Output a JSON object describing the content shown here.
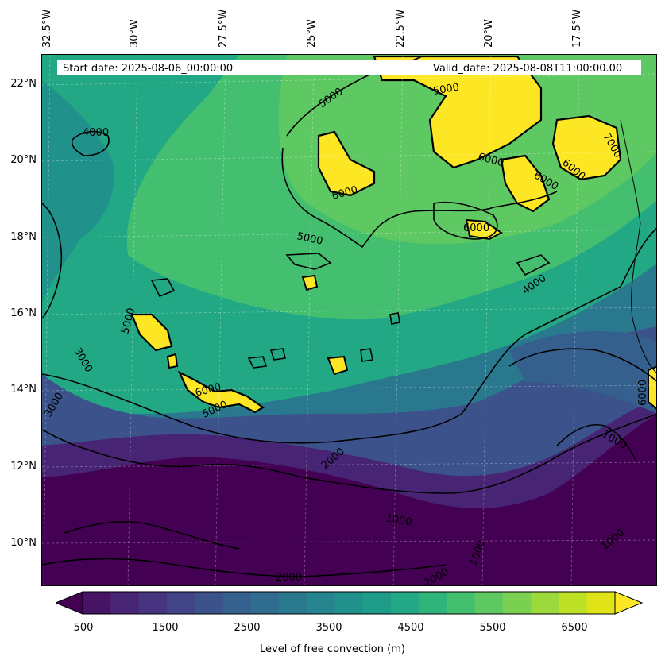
{
  "header": {
    "start_date": "Start date: 2025-08-06_00:00:00",
    "valid_date": "Valid_date: 2025-08-08T11:00:00.00"
  },
  "longitude_labels": [
    "32.5°W",
    "30°W",
    "27.5°W",
    "25°W",
    "22.5°W",
    "20°W",
    "17.5°W"
  ],
  "latitude_labels": [
    "22°N",
    "20°N",
    "18°N",
    "16°N",
    "14°N",
    "12°N",
    "10°N"
  ],
  "contour_labels": [
    "4000",
    "5000",
    "5000",
    "6000",
    "6000",
    "6000",
    "6000",
    "7000",
    "6000",
    "4000",
    "3000",
    "3000",
    "5000",
    "5000",
    "6000",
    "5000",
    "2000",
    "1000",
    "1000",
    "1000",
    "2000",
    "2000",
    "1000",
    "6000"
  ],
  "colorbar": {
    "ticks": [
      "500",
      "1500",
      "2500",
      "3500",
      "4500",
      "5500",
      "6500"
    ],
    "label": "Level of free convection (m)",
    "colors": [
      "#440154",
      "#471365",
      "#482475",
      "#463480",
      "#414487",
      "#3b528b",
      "#355f8d",
      "#2f6c8e",
      "#2a788e",
      "#25848e",
      "#21918c",
      "#1e9c89",
      "#22a884",
      "#2fb47c",
      "#44bf70",
      "#5ec962",
      "#7ad151",
      "#9bd93c",
      "#bddf26",
      "#dfe318",
      "#fde725"
    ]
  }
}
